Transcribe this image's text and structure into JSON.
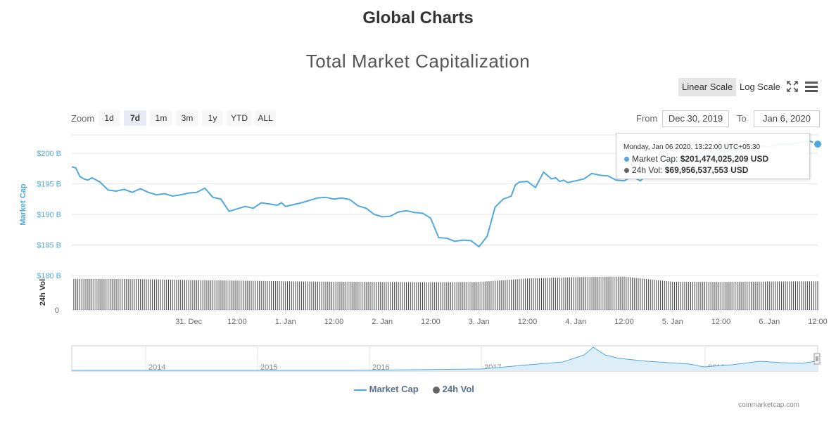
{
  "page": {
    "title": "Global Charts",
    "credits": "coinmarketcap.com"
  },
  "toolbar": {
    "linear_scale": "Linear Scale",
    "log_scale": "Log Scale",
    "fullscreen_icon": "expand-icon",
    "menu_icon": "hamburger-menu-icon"
  },
  "zoom": {
    "label": "Zoom",
    "buttons": [
      "1d",
      "7d",
      "1m",
      "3m",
      "1y",
      "YTD",
      "ALL"
    ],
    "active": "7d"
  },
  "range": {
    "from_label": "From",
    "from_value": "Dec 30, 2019",
    "to_label": "To",
    "to_value": "Jan 6, 2020"
  },
  "tooltip": {
    "date": "Monday, Jan 06 2020, 13:22:00 UTC+05:30",
    "market_cap_label": "Market Cap:",
    "market_cap_value": "$201,474,025,209 USD",
    "vol_label": "24h Vol:",
    "vol_value": "$69,956,537,553 USD"
  },
  "legend": {
    "market_cap": "Market Cap",
    "vol": "24h Vol"
  },
  "colors": {
    "market_cap": "#4fa9e0",
    "volume": "#444444",
    "nav_fill": "#ddeef9",
    "grid": "#e6e6e6"
  },
  "chart_data": {
    "type": "line",
    "title": "Total Market Capitalization",
    "ylabel": "Market Cap",
    "ylabel_volume": "24h Vol",
    "ylim": [
      180,
      203
    ],
    "y_unit": "B",
    "y_ticks": [
      "$180 B",
      "$185 B",
      "$190 B",
      "$195 B",
      "$200 B"
    ],
    "volume_tick": "0",
    "x_ticks": [
      "31. Dec",
      "12:00",
      "1. Jan",
      "12:00",
      "2. Jan",
      "12:00",
      "3. Jan",
      "12:00",
      "4. Jan",
      "12:00",
      "5. Jan",
      "12:00",
      "6. Jan",
      "12:00"
    ],
    "x_range_hours": [
      -29,
      156
    ],
    "series": [
      {
        "name": "Market Cap",
        "x_hours": [
          -29,
          -28,
          -27,
          -26,
          -25,
          -24,
          -22,
          -20,
          -18,
          -16,
          -14,
          -12,
          -10,
          -8,
          -6,
          -4,
          -2,
          0,
          2,
          4,
          6,
          8,
          10,
          12,
          14,
          16,
          18,
          20,
          22,
          23,
          24,
          26,
          28,
          30,
          32,
          34,
          36,
          38,
          40,
          42,
          44,
          46,
          48,
          50,
          52,
          54,
          56,
          58,
          60,
          62,
          64,
          66,
          68,
          70,
          72,
          74,
          76,
          78,
          80,
          81,
          82,
          84,
          86,
          88,
          90,
          91,
          92,
          93,
          94,
          96,
          98,
          100,
          102,
          104,
          106,
          108,
          110,
          112,
          114,
          116,
          118,
          120,
          122,
          124,
          126,
          128,
          130,
          132,
          134,
          136,
          138,
          140,
          142,
          144,
          146,
          148,
          150,
          152,
          154,
          156
        ],
        "values": [
          197.8,
          197.6,
          196.2,
          195.8,
          195.6,
          196.0,
          195.3,
          194.0,
          193.8,
          194.1,
          193.6,
          194.2,
          193.6,
          193.2,
          193.4,
          193.0,
          193.2,
          193.5,
          193.6,
          194.3,
          192.8,
          192.5,
          190.5,
          190.9,
          191.3,
          191.0,
          191.9,
          191.7,
          191.5,
          191.9,
          191.3,
          191.6,
          191.9,
          192.3,
          192.7,
          192.8,
          192.5,
          192.7,
          192.4,
          191.4,
          191.0,
          190.0,
          189.6,
          189.7,
          190.4,
          190.6,
          190.3,
          190.2,
          189.4,
          186.2,
          186.1,
          185.6,
          185.8,
          185.7,
          184.7,
          186.4,
          191.2,
          192.5,
          193.0,
          194.8,
          195.3,
          195.4,
          194.4,
          196.9,
          195.8,
          196.0,
          195.4,
          195.6,
          195.2,
          195.5,
          195.8,
          196.7,
          196.4,
          196.3,
          195.6,
          195.5,
          196.2,
          195.5,
          196.6,
          197.2,
          198.0,
          198.6,
          199.2,
          199.0,
          199.4,
          199.8,
          200.0,
          200.2,
          200.6,
          200.6,
          200.8,
          200.9,
          201.2,
          201.0,
          201.4,
          201.5,
          201.6,
          201.8,
          202.0,
          201.5
        ]
      },
      {
        "name": "24h Vol",
        "x_hours": [
          -29,
          -12,
          0,
          12,
          24,
          36,
          48,
          60,
          72,
          84,
          96,
          108,
          120,
          132,
          144,
          156
        ],
        "values": [
          70.0,
          69.5,
          67.5,
          66.0,
          64.5,
          63.5,
          63.0,
          62.5,
          63.0,
          71.0,
          74.0,
          75.0,
          63.5,
          63.0,
          64.0,
          64.5
        ]
      }
    ],
    "navigator": {
      "x_ticks": [
        "2014",
        "2015",
        "2016",
        "2017",
        "2018",
        "2019"
      ]
    }
  }
}
